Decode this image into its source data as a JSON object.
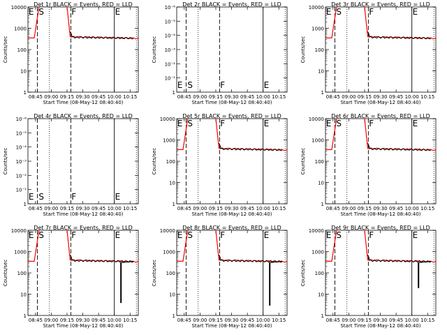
{
  "chart_data": [
    {
      "type": "line",
      "title": "Det 1r BLACK = Events, RED = LLD",
      "scale": "log",
      "ylim": [
        1,
        10000
      ],
      "yticks": [
        "1",
        "10",
        "100",
        "1000",
        "10000"
      ],
      "xlabel": "Start Time (08-May-12 08:40:40)",
      "ylabel": "Counts/sec",
      "xticks": [
        "08:45",
        "09:00",
        "09:15",
        "09:30",
        "09:45",
        "10:00",
        "10:15"
      ],
      "markers": [
        "E",
        "S",
        "F",
        "E"
      ],
      "has_data": true,
      "dropout": null
    },
    {
      "type": "line",
      "title": "Det 2r BLACK = Events, RED = LLD",
      "scale": "exp",
      "ylim": [
        1,
        1e-06
      ],
      "yticks": [
        "1",
        "10⁻¹",
        "10⁻²",
        "10⁻³",
        "10⁻⁴",
        "10⁻⁵",
        "10⁻⁶"
      ],
      "xlabel": "Start Time (08-May-12 08:40:40)",
      "ylabel": "Counts/sec",
      "xticks": [
        "08:45",
        "09:00",
        "09:15",
        "09:30",
        "09:45",
        "10:00",
        "10:15"
      ],
      "markers": [
        "E",
        "S",
        "F",
        "E"
      ],
      "has_data": false,
      "dropout": null
    },
    {
      "type": "line",
      "title": "Det 3r BLACK = Events, RED = LLD",
      "scale": "log",
      "ylim": [
        1,
        10000
      ],
      "yticks": [
        "1",
        "10",
        "100",
        "1000",
        "10000"
      ],
      "xlabel": "Start Time (08-May-12 08:40:40)",
      "ylabel": "Counts/sec",
      "xticks": [
        "08:45",
        "09:00",
        "09:15",
        "09:30",
        "09:45",
        "10:00",
        "10:15"
      ],
      "markers": [
        "E",
        "S",
        "F",
        "E"
      ],
      "has_data": true,
      "dropout": null
    },
    {
      "type": "line",
      "title": "Det 4r BLACK = Events, RED = LLD",
      "scale": "exp",
      "ylim": [
        1,
        1e-06
      ],
      "yticks": [
        "1",
        "10⁻¹",
        "10⁻²",
        "10⁻³",
        "10⁻⁴",
        "10⁻⁵",
        "10⁻⁶"
      ],
      "xlabel": "Start Time (08-May-12 08:40:40)",
      "ylabel": "Counts/sec",
      "xticks": [
        "08:45",
        "09:00",
        "09:15",
        "09:30",
        "09:45",
        "10:00",
        "10:15"
      ],
      "markers": [
        "E",
        "S",
        "F",
        "E"
      ],
      "has_data": false,
      "dropout": null
    },
    {
      "type": "line",
      "title": "Det 5r BLACK = Events, RED = LLD",
      "scale": "log",
      "ylim": [
        1,
        10000
      ],
      "yticks": [
        "1",
        "10",
        "100",
        "1000",
        "10000"
      ],
      "xlabel": "Start Time (08-May-12 08:40:40)",
      "ylabel": "Counts/sec",
      "xticks": [
        "08:45",
        "09:00",
        "09:15",
        "09:30",
        "09:45",
        "10:00",
        "10:15"
      ],
      "markers": [
        "E",
        "S",
        "F",
        "E"
      ],
      "has_data": true,
      "dropout": null
    },
    {
      "type": "line",
      "title": "Det 6r BLACK = Events, RED = LLD",
      "scale": "log",
      "ylim": [
        1,
        10000
      ],
      "yticks": [
        "1",
        "10",
        "100",
        "1000",
        "10000"
      ],
      "xlabel": "Start Time (08-May-12 08:40:40)",
      "ylabel": "Counts/sec",
      "xticks": [
        "08:45",
        "09:00",
        "09:15",
        "09:30",
        "09:45",
        "10:00",
        "10:15"
      ],
      "markers": [
        "E",
        "S",
        "F",
        "E"
      ],
      "has_data": true,
      "dropout": null
    },
    {
      "type": "line",
      "title": "Det 7r BLACK = Events, RED = LLD",
      "scale": "log",
      "ylim": [
        1,
        10000
      ],
      "yticks": [
        "1",
        "10",
        "100",
        "1000",
        "10000"
      ],
      "xlabel": "Start Time (08-May-12 08:40:40)",
      "ylabel": "Counts/sec",
      "xticks": [
        "08:45",
        "09:00",
        "09:15",
        "09:30",
        "09:45",
        "10:00",
        "10:15"
      ],
      "markers": [
        "E",
        "S",
        "F",
        "E"
      ],
      "has_data": true,
      "dropout": [
        10.1,
        4
      ]
    },
    {
      "type": "line",
      "title": "Det 8r BLACK = Events, RED = LLD",
      "scale": "log",
      "ylim": [
        1,
        10000
      ],
      "yticks": [
        "1",
        "10",
        "100",
        "1000",
        "10000"
      ],
      "xlabel": "Start Time (08-May-12 08:40:40)",
      "ylabel": "Counts/sec",
      "xticks": [
        "08:45",
        "09:00",
        "09:15",
        "09:30",
        "09:45",
        "10:00",
        "10:15"
      ],
      "markers": [
        "E",
        "S",
        "F",
        "E"
      ],
      "has_data": true,
      "dropout": [
        10.1,
        3
      ]
    },
    {
      "type": "line",
      "title": "Det 9r BLACK = Events, RED = LLD",
      "scale": "log",
      "ylim": [
        1,
        10000
      ],
      "yticks": [
        "1",
        "10",
        "100",
        "1000",
        "10000"
      ],
      "xlabel": "Start Time (08-May-12 08:40:40)",
      "ylabel": "Counts/sec",
      "xticks": [
        "08:45",
        "09:00",
        "09:15",
        "09:30",
        "09:45",
        "10:00",
        "10:15"
      ],
      "markers": [
        "E",
        "S",
        "F",
        "E"
      ],
      "has_data": true,
      "dropout": [
        10.1,
        20
      ]
    }
  ],
  "colors": {
    "events": "#000000",
    "lld": "#ff0000"
  }
}
